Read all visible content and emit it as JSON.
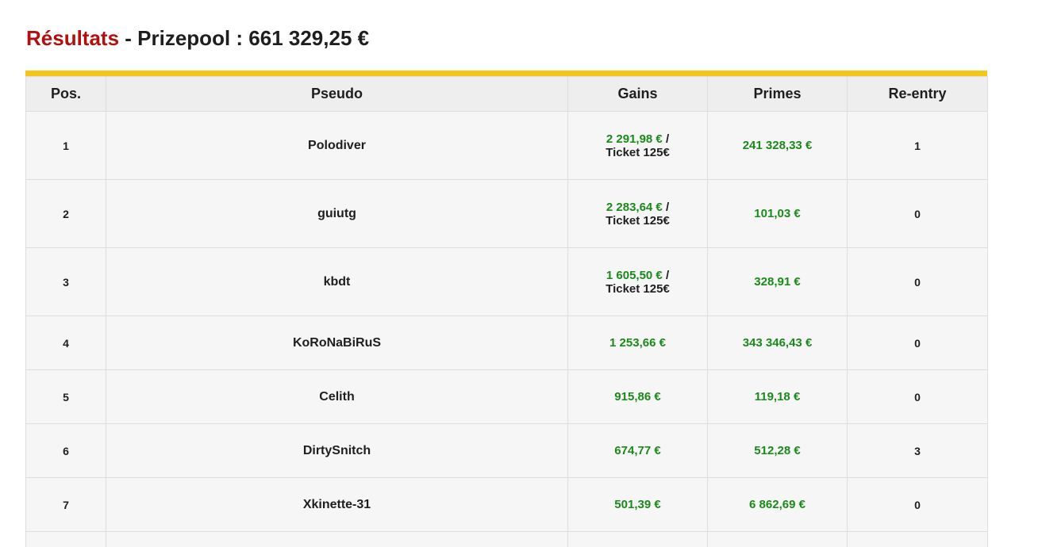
{
  "header": {
    "title_results": "Résultats",
    "title_separator": " - ",
    "title_prizepool": "Prizepool : 661 329,25 €"
  },
  "colors": {
    "accent_bar": "#f5c518",
    "title_red": "#b30f0f",
    "money_green": "#1a8a1a"
  },
  "table": {
    "columns": [
      "Pos.",
      "Pseudo",
      "Gains",
      "Primes",
      "Re-entry"
    ],
    "rows": [
      {
        "pos": "1",
        "pseudo": "Polodiver",
        "gains": "2 291,98 €",
        "gains_sep": " /",
        "gains_extra": "Ticket 125€",
        "primes": "241 328,33 €",
        "reentry": "1"
      },
      {
        "pos": "2",
        "pseudo": "guiutg",
        "gains": "2 283,64 €",
        "gains_sep": " /",
        "gains_extra": "Ticket 125€",
        "primes": "101,03 €",
        "reentry": "0"
      },
      {
        "pos": "3",
        "pseudo": "kbdt",
        "gains": "1 605,50 €",
        "gains_sep": " /",
        "gains_extra": "Ticket 125€",
        "primes": "328,91 €",
        "reentry": "0"
      },
      {
        "pos": "4",
        "pseudo": "KoRoNaBiRuS",
        "gains": "1 253,66 €",
        "primes": "343 346,43 €",
        "reentry": "0"
      },
      {
        "pos": "5",
        "pseudo": "Celith",
        "gains": "915,86 €",
        "primes": "119,18 €",
        "reentry": "0"
      },
      {
        "pos": "6",
        "pseudo": "DirtySnitch",
        "gains": "674,77 €",
        "primes": "512,28 €",
        "reentry": "3"
      },
      {
        "pos": "7",
        "pseudo": "Xkinette-31",
        "gains": "501,39 €",
        "primes": "6 862,69 €",
        "reentry": "0"
      }
    ]
  }
}
